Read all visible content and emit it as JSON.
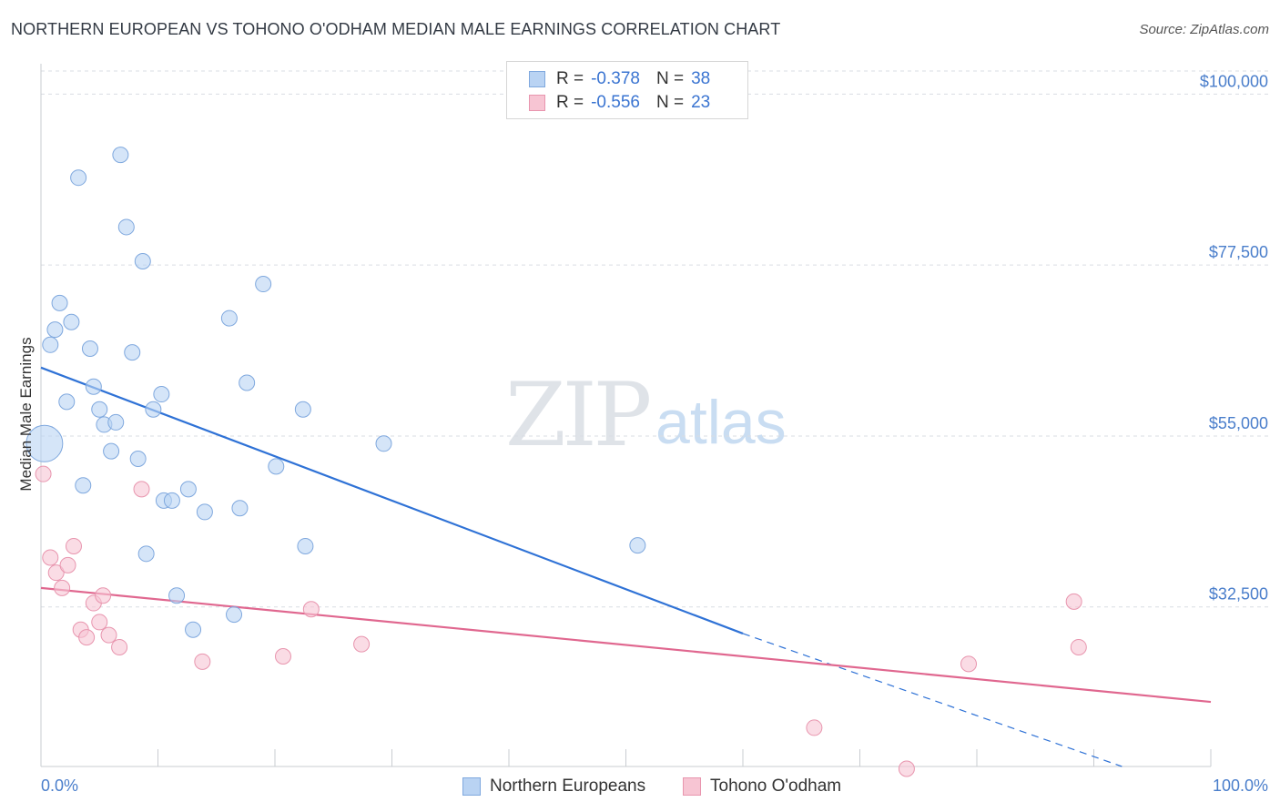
{
  "header": {
    "title": "NORTHERN EUROPEAN VS TOHONO O'ODHAM MEDIAN MALE EARNINGS CORRELATION CHART",
    "source": "Source: ZipAtlas.com"
  },
  "watermark": {
    "zip": "ZIP",
    "atlas": "atlas"
  },
  "legend": {
    "rows": [
      {
        "r_label": "R =",
        "r_value": "-0.378",
        "n_label": "N =",
        "n_value": "38"
      },
      {
        "r_label": "R =",
        "r_value": "-0.556",
        "n_label": "N =",
        "n_value": "23"
      }
    ]
  },
  "bottom_legend": {
    "items": [
      {
        "label": "Northern Europeans"
      },
      {
        "label": "Tohono O'odham"
      }
    ]
  },
  "colors": {
    "blue_fill": "#b9d3f3",
    "blue_stroke": "#7fa8de",
    "blue_line": "#2f72d6",
    "pink_fill": "#f7c5d3",
    "pink_stroke": "#e895ae",
    "pink_line": "#e0678f",
    "axis_text": "#4a7ecb",
    "grid": "#d9dde3"
  },
  "chart_data": {
    "type": "scatter",
    "title": "NORTHERN EUROPEAN VS TOHONO O'ODHAM MEDIAN MALE EARNINGS CORRELATION CHART",
    "xlabel": "",
    "ylabel": "Median Male Earnings",
    "xlim": [
      0,
      100
    ],
    "ylim": [
      11500,
      104000
    ],
    "x_tick_labels": [
      "0.0%",
      "100.0%"
    ],
    "y_ticks": [
      32500,
      55000,
      77500,
      100000
    ],
    "y_tick_labels": [
      "$32,500",
      "$55,000",
      "$77,500",
      "$100,000"
    ],
    "grid": true,
    "legend_position": "top-center",
    "series": [
      {
        "name": "Northern Europeans",
        "r": -0.378,
        "n": 38,
        "trend": {
          "x": [
            0,
            60
          ],
          "y": [
            64000,
            29000
          ],
          "dashed_extension": {
            "x": [
              60,
              92.4
            ],
            "y": [
              29000,
              11500
            ]
          }
        },
        "points": [
          {
            "x": 0.3,
            "y": 54000,
            "big": true
          },
          {
            "x": 0.8,
            "y": 67000
          },
          {
            "x": 1.2,
            "y": 69000
          },
          {
            "x": 1.6,
            "y": 72500
          },
          {
            "x": 2.2,
            "y": 59500
          },
          {
            "x": 2.6,
            "y": 70000
          },
          {
            "x": 3.2,
            "y": 89000
          },
          {
            "x": 3.6,
            "y": 48500
          },
          {
            "x": 4.2,
            "y": 66500
          },
          {
            "x": 4.5,
            "y": 61500
          },
          {
            "x": 5.0,
            "y": 58500
          },
          {
            "x": 5.4,
            "y": 56500
          },
          {
            "x": 6.0,
            "y": 53000
          },
          {
            "x": 6.4,
            "y": 56800
          },
          {
            "x": 6.8,
            "y": 92000
          },
          {
            "x": 7.3,
            "y": 82500
          },
          {
            "x": 7.8,
            "y": 66000
          },
          {
            "x": 8.3,
            "y": 52000
          },
          {
            "x": 8.7,
            "y": 78000
          },
          {
            "x": 9.0,
            "y": 39500
          },
          {
            "x": 9.6,
            "y": 58500
          },
          {
            "x": 10.3,
            "y": 60500
          },
          {
            "x": 10.5,
            "y": 46500
          },
          {
            "x": 11.2,
            "y": 46500
          },
          {
            "x": 11.6,
            "y": 34000
          },
          {
            "x": 12.6,
            "y": 48000
          },
          {
            "x": 13.0,
            "y": 29500
          },
          {
            "x": 14.0,
            "y": 45000
          },
          {
            "x": 16.1,
            "y": 70500
          },
          {
            "x": 16.5,
            "y": 31500
          },
          {
            "x": 17.0,
            "y": 45500
          },
          {
            "x": 17.6,
            "y": 62000
          },
          {
            "x": 19.0,
            "y": 75000
          },
          {
            "x": 20.1,
            "y": 51000
          },
          {
            "x": 22.4,
            "y": 58500
          },
          {
            "x": 22.6,
            "y": 40500
          },
          {
            "x": 29.3,
            "y": 54000
          },
          {
            "x": 51.0,
            "y": 40600
          }
        ]
      },
      {
        "name": "Tohono O'odham",
        "r": -0.556,
        "n": 23,
        "trend": {
          "x": [
            0,
            100
          ],
          "y": [
            35000,
            20000
          ]
        },
        "points": [
          {
            "x": 0.2,
            "y": 50000
          },
          {
            "x": 0.8,
            "y": 39000
          },
          {
            "x": 1.3,
            "y": 37000
          },
          {
            "x": 1.8,
            "y": 35000
          },
          {
            "x": 2.3,
            "y": 38000
          },
          {
            "x": 2.8,
            "y": 40500
          },
          {
            "x": 3.4,
            "y": 29500
          },
          {
            "x": 3.9,
            "y": 28500
          },
          {
            "x": 4.5,
            "y": 33000
          },
          {
            "x": 5.0,
            "y": 30500
          },
          {
            "x": 5.3,
            "y": 34000
          },
          {
            "x": 5.8,
            "y": 28800
          },
          {
            "x": 6.7,
            "y": 27200
          },
          {
            "x": 8.6,
            "y": 48000
          },
          {
            "x": 13.8,
            "y": 25300
          },
          {
            "x": 20.7,
            "y": 26000
          },
          {
            "x": 23.1,
            "y": 32200
          },
          {
            "x": 27.4,
            "y": 27600
          },
          {
            "x": 66.1,
            "y": 16600
          },
          {
            "x": 74.0,
            "y": 11200
          },
          {
            "x": 79.3,
            "y": 25000
          },
          {
            "x": 88.3,
            "y": 33200
          },
          {
            "x": 88.7,
            "y": 27200
          }
        ]
      }
    ]
  }
}
